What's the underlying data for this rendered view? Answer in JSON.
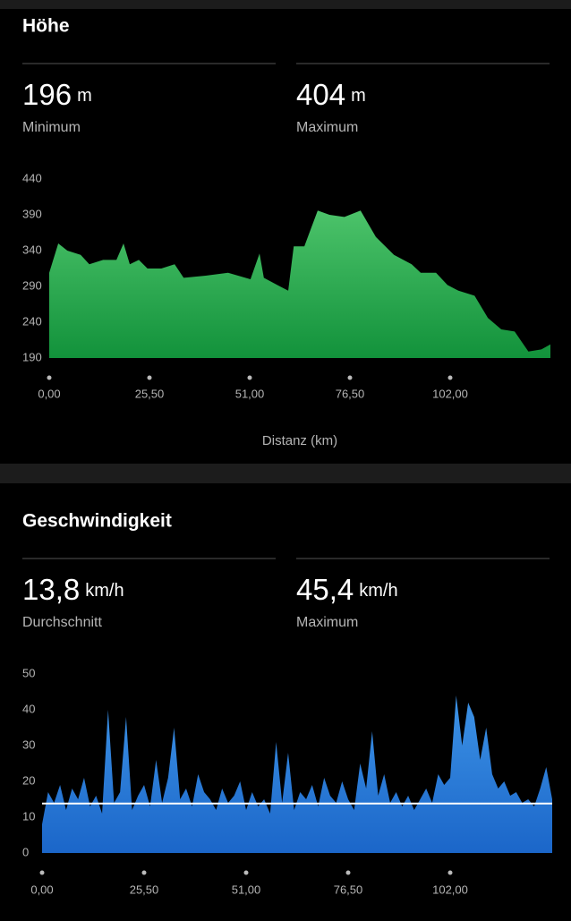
{
  "sections": [
    {
      "title": "Höhe",
      "stats": [
        {
          "value": "196",
          "unit": "m",
          "label": "Minimum"
        },
        {
          "value": "404",
          "unit": "m",
          "label": "Maximum"
        }
      ]
    },
    {
      "title": "Geschwindigkeit",
      "stats": [
        {
          "value": "13,8",
          "unit": "km/h",
          "label": "Durchschnitt"
        },
        {
          "value": "45,4",
          "unit": "km/h",
          "label": "Maximum"
        }
      ]
    }
  ],
  "chart_data": [
    {
      "type": "area",
      "x_label": "Distanz (km)",
      "x": [
        0,
        2.3,
        4.6,
        8.0,
        10.2,
        13.7,
        17.1,
        18.9,
        20.5,
        22.8,
        25.0,
        28.5,
        31.9,
        34.2,
        39.8,
        45.5,
        51.2,
        53.5,
        54.6,
        58.0,
        60.8,
        62.2,
        64.9,
        68.3,
        71.3,
        75.1,
        79.2,
        83.1,
        87.7,
        92.2,
        94.5,
        98.4,
        101.3,
        104.1,
        108.2,
        111.6,
        115.0,
        118.4,
        121.9,
        125.2,
        127.5
      ],
      "values": [
        309,
        350,
        340,
        334,
        321,
        327,
        327,
        350,
        321,
        327,
        315,
        315,
        321,
        302,
        305,
        309,
        300,
        336,
        302,
        292,
        284,
        346,
        346,
        396,
        390,
        387,
        396,
        359,
        334,
        321,
        309,
        309,
        292,
        284,
        277,
        246,
        230,
        227,
        199,
        202,
        209
      ],
      "gradient": [
        "#4cc36a",
        "#12923b"
      ],
      "xlim": [
        0,
        127.5
      ],
      "ylim": [
        190,
        440
      ],
      "xticks": [
        {
          "value": 0,
          "label": "0,00"
        },
        {
          "value": 25.5,
          "label": "25,50"
        },
        {
          "value": 51,
          "label": "51,00"
        },
        {
          "value": 76.5,
          "label": "76,50"
        },
        {
          "value": 102,
          "label": "102,00"
        }
      ],
      "yticks": [
        190,
        240,
        290,
        340,
        390,
        440
      ]
    },
    {
      "type": "area",
      "x": [
        0,
        1.5,
        3,
        4.5,
        6,
        7.5,
        9,
        10.5,
        12,
        13.5,
        15,
        16.5,
        18,
        19.5,
        21,
        22.5,
        24,
        25.5,
        27,
        28.5,
        30,
        31.5,
        33,
        34.5,
        36,
        37.5,
        39,
        40.5,
        42,
        43.5,
        45,
        46.5,
        48,
        49.5,
        51,
        52.5,
        54,
        55.5,
        57,
        58.5,
        60,
        61.5,
        63,
        64.5,
        66,
        67.5,
        69,
        70.5,
        72,
        73.5,
        75,
        76.5,
        78,
        79.5,
        81,
        82.5,
        84,
        85.5,
        87,
        88.5,
        90,
        91.5,
        93,
        94.5,
        96,
        97.5,
        99,
        100.5,
        102,
        103.5,
        105,
        106.5,
        108,
        109.5,
        111,
        112.5,
        114,
        115.5,
        117,
        118.5,
        120,
        121.5,
        123,
        124.5,
        126,
        127.5
      ],
      "values": [
        8,
        17,
        14,
        19,
        12,
        18,
        15,
        21,
        13,
        16,
        11,
        40,
        14,
        17,
        38,
        12,
        16,
        19,
        13,
        26,
        14,
        21,
        35,
        15,
        18,
        13,
        22,
        17,
        15,
        12,
        18,
        14,
        16,
        20,
        12,
        17,
        13,
        15,
        11,
        31,
        14,
        28,
        12,
        17,
        15,
        19,
        13,
        21,
        16,
        14,
        20,
        15,
        12,
        25,
        18,
        34,
        16,
        22,
        14,
        17,
        13,
        16,
        12,
        15,
        18,
        14,
        22,
        19,
        21,
        44,
        30,
        42,
        38,
        26,
        35,
        22,
        18,
        20,
        16,
        17,
        14,
        15,
        13,
        18,
        24,
        15
      ],
      "gradient": [
        "#3d93e6",
        "#1b66c9"
      ],
      "average_line": 13.8,
      "average_color": "#ffffff",
      "xlim": [
        0,
        127.5
      ],
      "ylim": [
        0,
        50
      ],
      "xticks": [
        {
          "value": 0,
          "label": "0,00"
        },
        {
          "value": 25.5,
          "label": "25,50"
        },
        {
          "value": 51,
          "label": "51,00"
        },
        {
          "value": 76.5,
          "label": "76,50"
        },
        {
          "value": 102,
          "label": "102,00"
        }
      ],
      "yticks": [
        0,
        10,
        20,
        30,
        40,
        50
      ]
    }
  ]
}
